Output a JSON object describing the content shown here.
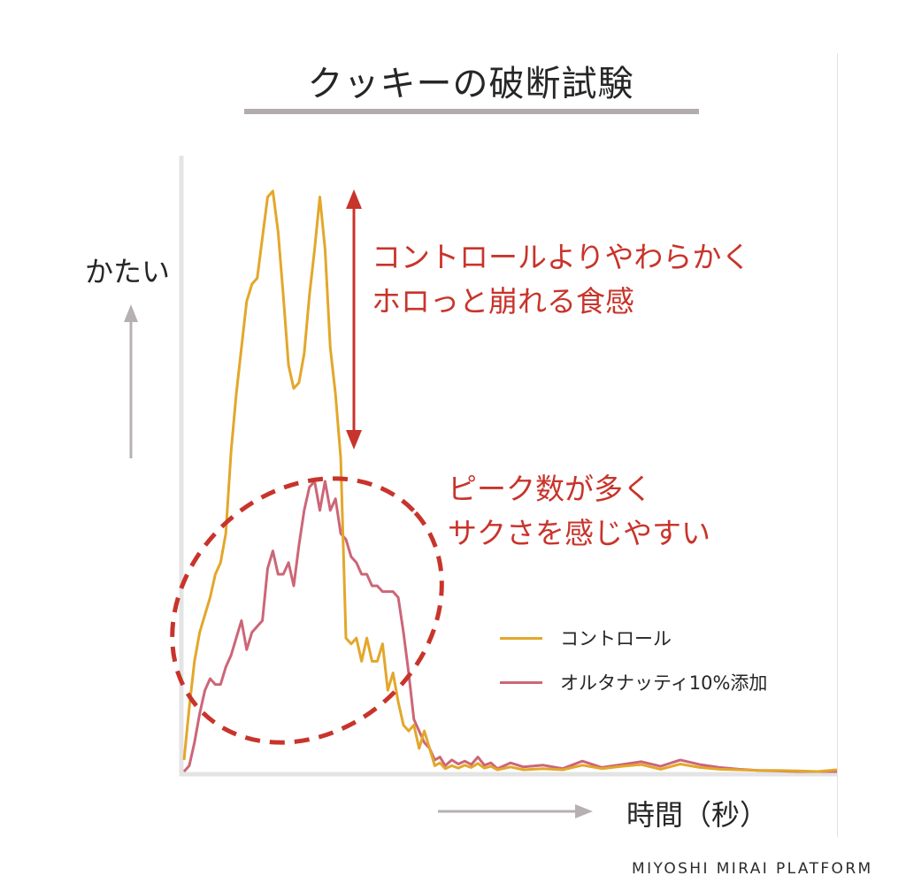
{
  "page": {
    "title": "クッキーの破断試験",
    "footer": "MIYOSHI MIRAI PLATFORM"
  },
  "annotations": {
    "note1": [
      "コントロールよりやわらかく",
      "ホロっと崩れる食感"
    ],
    "note2": [
      "ピーク数が多く",
      "サクさを感じやすい"
    ]
  },
  "colors": {
    "control": "#e3a72a",
    "oat": "#cc6677",
    "annotation": "#c8342b",
    "axis": "#e4e4e4",
    "arrow": "#b7b0b3"
  },
  "chart_data": {
    "type": "line",
    "title": "クッキーの破断試験",
    "xlabel": "時間（秒）",
    "ylabel": "かたい",
    "xlim": [
      0,
      100
    ],
    "ylim": [
      0,
      100
    ],
    "grid": false,
    "legend_position": "right",
    "series": [
      {
        "name": "コントロール",
        "color": "#e3a72a",
        "x": [
          0,
          0.8,
          1.6,
          2.4,
          3.2,
          4,
          4.8,
          5.6,
          6.4,
          7.2,
          8,
          8.8,
          9.6,
          10.4,
          11.2,
          12,
          12.8,
          13.6,
          14.4,
          15.2,
          16,
          16.8,
          17.6,
          18.4,
          19.2,
          20,
          20.8,
          21.6,
          22.4,
          23.2,
          24,
          24.8,
          25.6,
          26.4,
          27.2,
          28,
          28.8,
          29.6,
          30.4,
          31.2,
          32,
          32.8,
          33.6,
          34.4,
          35.2,
          36,
          36.8,
          37.6,
          38.4,
          39.2,
          40,
          41,
          42,
          43,
          44,
          45,
          46,
          47,
          48,
          50,
          52,
          55,
          58,
          61,
          64,
          67,
          70,
          73,
          76,
          79,
          82,
          85,
          88,
          91,
          94,
          97,
          100
        ],
        "values": [
          2,
          11,
          19,
          24,
          27,
          30,
          34,
          36,
          41,
          55,
          65,
          73,
          81,
          84,
          85,
          92,
          99,
          100,
          93,
          82,
          70,
          66,
          67,
          72,
          82,
          90,
          99,
          90,
          73,
          65,
          54,
          23,
          22,
          23,
          19,
          23,
          19,
          19,
          22,
          14,
          17,
          12,
          8,
          7,
          8,
          4,
          7,
          4,
          1,
          1.5,
          0.5,
          1,
          0.6,
          1.1,
          0.7,
          1.4,
          0.6,
          0.9,
          0.3,
          0.8,
          0.3,
          0.5,
          0.3,
          1.1,
          0.5,
          0.9,
          1.2,
          0.4,
          1.3,
          0.7,
          0.4,
          0.3,
          0.2,
          0.2,
          0.1,
          0,
          0.3
        ]
      },
      {
        "name": "オルタナッティ10%添加",
        "color": "#cc6677",
        "x": [
          0,
          0.8,
          1.6,
          2.4,
          3.2,
          4,
          4.8,
          5.6,
          6.4,
          7.2,
          8,
          8.8,
          9.6,
          10.4,
          11.2,
          12,
          12.8,
          13.6,
          14.4,
          15.2,
          16,
          16.8,
          17.6,
          18.4,
          19.2,
          20,
          20.8,
          21.6,
          22.4,
          23.2,
          24,
          24.8,
          25.6,
          26.4,
          27.2,
          28,
          28.8,
          29.6,
          30.4,
          31.2,
          32,
          32.8,
          33.6,
          34.4,
          35.2,
          36,
          36.8,
          37.6,
          38.4,
          39.2,
          40,
          41,
          42,
          43,
          44,
          45,
          46,
          47,
          48,
          50,
          52,
          55,
          58,
          61,
          64,
          67,
          70,
          73,
          76,
          79,
          82,
          85,
          88,
          91,
          94,
          97,
          100
        ],
        "values": [
          0,
          1,
          5,
          10,
          14,
          16,
          15,
          15,
          18,
          20,
          23,
          26,
          21,
          24,
          25,
          26,
          35,
          38,
          34,
          34,
          36,
          32,
          39,
          45,
          49,
          50,
          45,
          50,
          45,
          47,
          41,
          40,
          37,
          36,
          34,
          34,
          32,
          32,
          31,
          31,
          31,
          30,
          24,
          17,
          9,
          7,
          5,
          4,
          2,
          2.5,
          1,
          2,
          1.3,
          1.8,
          1.2,
          2.5,
          1.1,
          1.5,
          0.5,
          1.5,
          0.8,
          1.1,
          0.5,
          1.8,
          0.7,
          1.2,
          1.7,
          0.9,
          2,
          1.2,
          0.7,
          0.4,
          0.2,
          0.1,
          0,
          0,
          0
        ]
      }
    ],
    "annotations": [
      "コントロールよりやわらかく ホロっと崩れる食感",
      "ピーク数が多く サクさを感じやすい"
    ]
  }
}
